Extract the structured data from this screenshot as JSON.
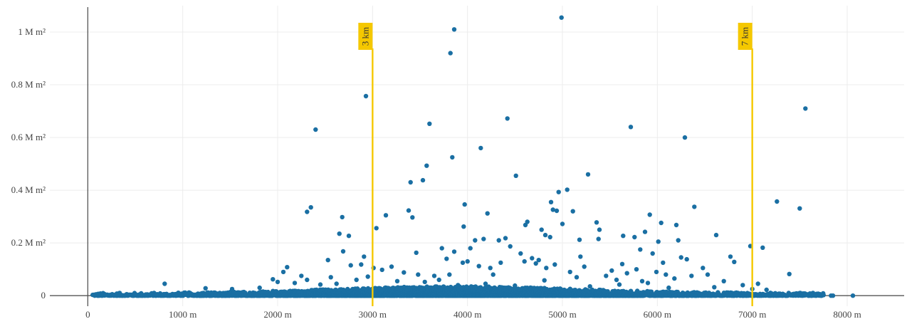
{
  "chart_data": {
    "type": "scatter",
    "title": "",
    "xlabel": "",
    "ylabel": "",
    "xlim": [
      -400,
      8600
    ],
    "ylim": [
      -40000,
      1100000
    ],
    "grid": true,
    "legend": "none",
    "x_ticks": [
      {
        "value": 0,
        "label": "0"
      },
      {
        "value": 1000,
        "label": "1000 m"
      },
      {
        "value": 2000,
        "label": "2000 m"
      },
      {
        "value": 3000,
        "label": "3000 m"
      },
      {
        "value": 4000,
        "label": "4000 m"
      },
      {
        "value": 5000,
        "label": "5000 m"
      },
      {
        "value": 6000,
        "label": "6000 m"
      },
      {
        "value": 7000,
        "label": "7000 m"
      },
      {
        "value": 8000,
        "label": "8000 m"
      }
    ],
    "y_ticks": [
      {
        "value": 0,
        "label": "0"
      },
      {
        "value": 200000,
        "label": "0.2 M m²"
      },
      {
        "value": 400000,
        "label": "0.4 M m²"
      },
      {
        "value": 600000,
        "label": "0.6 M m²"
      },
      {
        "value": 800000,
        "label": "0.8 M m²"
      },
      {
        "value": 1000000,
        "label": "1 M m²"
      }
    ],
    "reference_lines": [
      {
        "x": 3000,
        "label": "3 km"
      },
      {
        "x": 7000,
        "label": "7 km"
      }
    ],
    "colors": {
      "points": "#1a6fa3",
      "reference": "#f5c800",
      "grid": "#ececec",
      "axis": "#555555"
    },
    "series": [
      {
        "points": [
          [
            2930,
            757000
          ],
          [
            3860,
            1010000
          ],
          [
            3820,
            920000
          ],
          [
            4990,
            1055000
          ],
          [
            2400,
            630000
          ],
          [
            3600,
            652000
          ],
          [
            4420,
            672000
          ],
          [
            5720,
            640000
          ],
          [
            6290,
            600000
          ],
          [
            7560,
            710000
          ],
          [
            4140,
            560000
          ],
          [
            3840,
            525000
          ],
          [
            3570,
            493000
          ],
          [
            3530,
            438000
          ],
          [
            3400,
            430000
          ],
          [
            4510,
            455000
          ],
          [
            5270,
            460000
          ],
          [
            5050,
            402000
          ],
          [
            4960,
            393000
          ],
          [
            2350,
            335000
          ],
          [
            2310,
            318000
          ],
          [
            3140,
            305000
          ],
          [
            3380,
            323000
          ],
          [
            3420,
            297000
          ],
          [
            2680,
            298000
          ],
          [
            3970,
            346000
          ],
          [
            4210,
            312000
          ],
          [
            4880,
            355000
          ],
          [
            4900,
            326000
          ],
          [
            4940,
            322000
          ],
          [
            5110,
            320000
          ],
          [
            5360,
            278000
          ],
          [
            5390,
            250000
          ],
          [
            6390,
            337000
          ],
          [
            5920,
            307000
          ],
          [
            6040,
            276000
          ],
          [
            6200,
            268000
          ],
          [
            7260,
            357000
          ],
          [
            7500,
            331000
          ],
          [
            3040,
            256000
          ],
          [
            3960,
            262000
          ],
          [
            4610,
            268000
          ],
          [
            4630,
            280000
          ],
          [
            4780,
            250000
          ],
          [
            4820,
            230000
          ],
          [
            4870,
            222000
          ],
          [
            5000,
            272000
          ],
          [
            5640,
            227000
          ],
          [
            5760,
            222000
          ],
          [
            5870,
            242000
          ],
          [
            6010,
            205000
          ],
          [
            6220,
            210000
          ],
          [
            6620,
            230000
          ],
          [
            2650,
            235000
          ],
          [
            2750,
            227000
          ],
          [
            3460,
            163000
          ],
          [
            3730,
            180000
          ],
          [
            3860,
            167000
          ],
          [
            4030,
            180000
          ],
          [
            4080,
            210000
          ],
          [
            4170,
            215000
          ],
          [
            4330,
            210000
          ],
          [
            4400,
            218000
          ],
          [
            4450,
            187000
          ],
          [
            4560,
            160000
          ],
          [
            4680,
            142000
          ],
          [
            5180,
            212000
          ],
          [
            5190,
            148000
          ],
          [
            5380,
            215000
          ],
          [
            5630,
            120000
          ],
          [
            5820,
            175000
          ],
          [
            5950,
            160000
          ],
          [
            6060,
            125000
          ],
          [
            6250,
            145000
          ],
          [
            6310,
            138000
          ],
          [
            6770,
            148000
          ],
          [
            6810,
            128000
          ],
          [
            6980,
            188000
          ],
          [
            7110,
            182000
          ],
          [
            7390,
            82000
          ],
          [
            2100,
            108000
          ],
          [
            2060,
            90000
          ],
          [
            2250,
            75000
          ],
          [
            2530,
            135000
          ],
          [
            2690,
            168000
          ],
          [
            2770,
            115000
          ],
          [
            2880,
            118000
          ],
          [
            2910,
            148000
          ],
          [
            3100,
            98000
          ],
          [
            3200,
            110000
          ],
          [
            3330,
            88000
          ],
          [
            3480,
            80000
          ],
          [
            3650,
            75000
          ],
          [
            3780,
            140000
          ],
          [
            3810,
            80000
          ],
          [
            3950,
            125000
          ],
          [
            4000,
            130000
          ],
          [
            4120,
            112000
          ],
          [
            4240,
            105000
          ],
          [
            4270,
            80000
          ],
          [
            4350,
            125000
          ],
          [
            4600,
            130000
          ],
          [
            4720,
            122000
          ],
          [
            4750,
            135000
          ],
          [
            4830,
            105000
          ],
          [
            4920,
            118000
          ],
          [
            5080,
            90000
          ],
          [
            5150,
            70000
          ],
          [
            5230,
            110000
          ],
          [
            5460,
            75000
          ],
          [
            5520,
            95000
          ],
          [
            5570,
            60000
          ],
          [
            5680,
            85000
          ],
          [
            5780,
            100000
          ],
          [
            5840,
            55000
          ],
          [
            5990,
            90000
          ],
          [
            6090,
            80000
          ],
          [
            6180,
            65000
          ],
          [
            6360,
            75000
          ],
          [
            6480,
            105000
          ],
          [
            6530,
            80000
          ],
          [
            6700,
            55000
          ],
          [
            6900,
            40000
          ],
          [
            7060,
            45000
          ],
          [
            810,
            45000
          ],
          [
            1240,
            28000
          ],
          [
            1520,
            25000
          ],
          [
            1810,
            30000
          ],
          [
            1950,
            62000
          ],
          [
            2000,
            52000
          ],
          [
            2180,
            48000
          ],
          [
            2310,
            60000
          ],
          [
            2450,
            42000
          ],
          [
            2560,
            70000
          ],
          [
            2620,
            45000
          ],
          [
            2830,
            60000
          ],
          [
            2950,
            72000
          ],
          [
            3010,
            105000
          ],
          [
            3260,
            55000
          ],
          [
            3550,
            52000
          ],
          [
            3700,
            60000
          ],
          [
            3900,
            40000
          ],
          [
            4190,
            45000
          ],
          [
            4500,
            38000
          ],
          [
            4810,
            58000
          ],
          [
            5290,
            35000
          ],
          [
            5600,
            42000
          ],
          [
            5900,
            48000
          ],
          [
            6120,
            30000
          ],
          [
            6600,
            32000
          ],
          [
            7000,
            25000
          ],
          [
            7150,
            22000
          ]
        ]
      }
    ],
    "dense_band": {
      "description_free": true,
      "x_start": 50,
      "x_end": 7750,
      "y_max_core": 10000,
      "extra_points": [
        [
          7830,
          0
        ],
        [
          7850,
          0
        ],
        [
          8060,
          0
        ]
      ]
    }
  }
}
